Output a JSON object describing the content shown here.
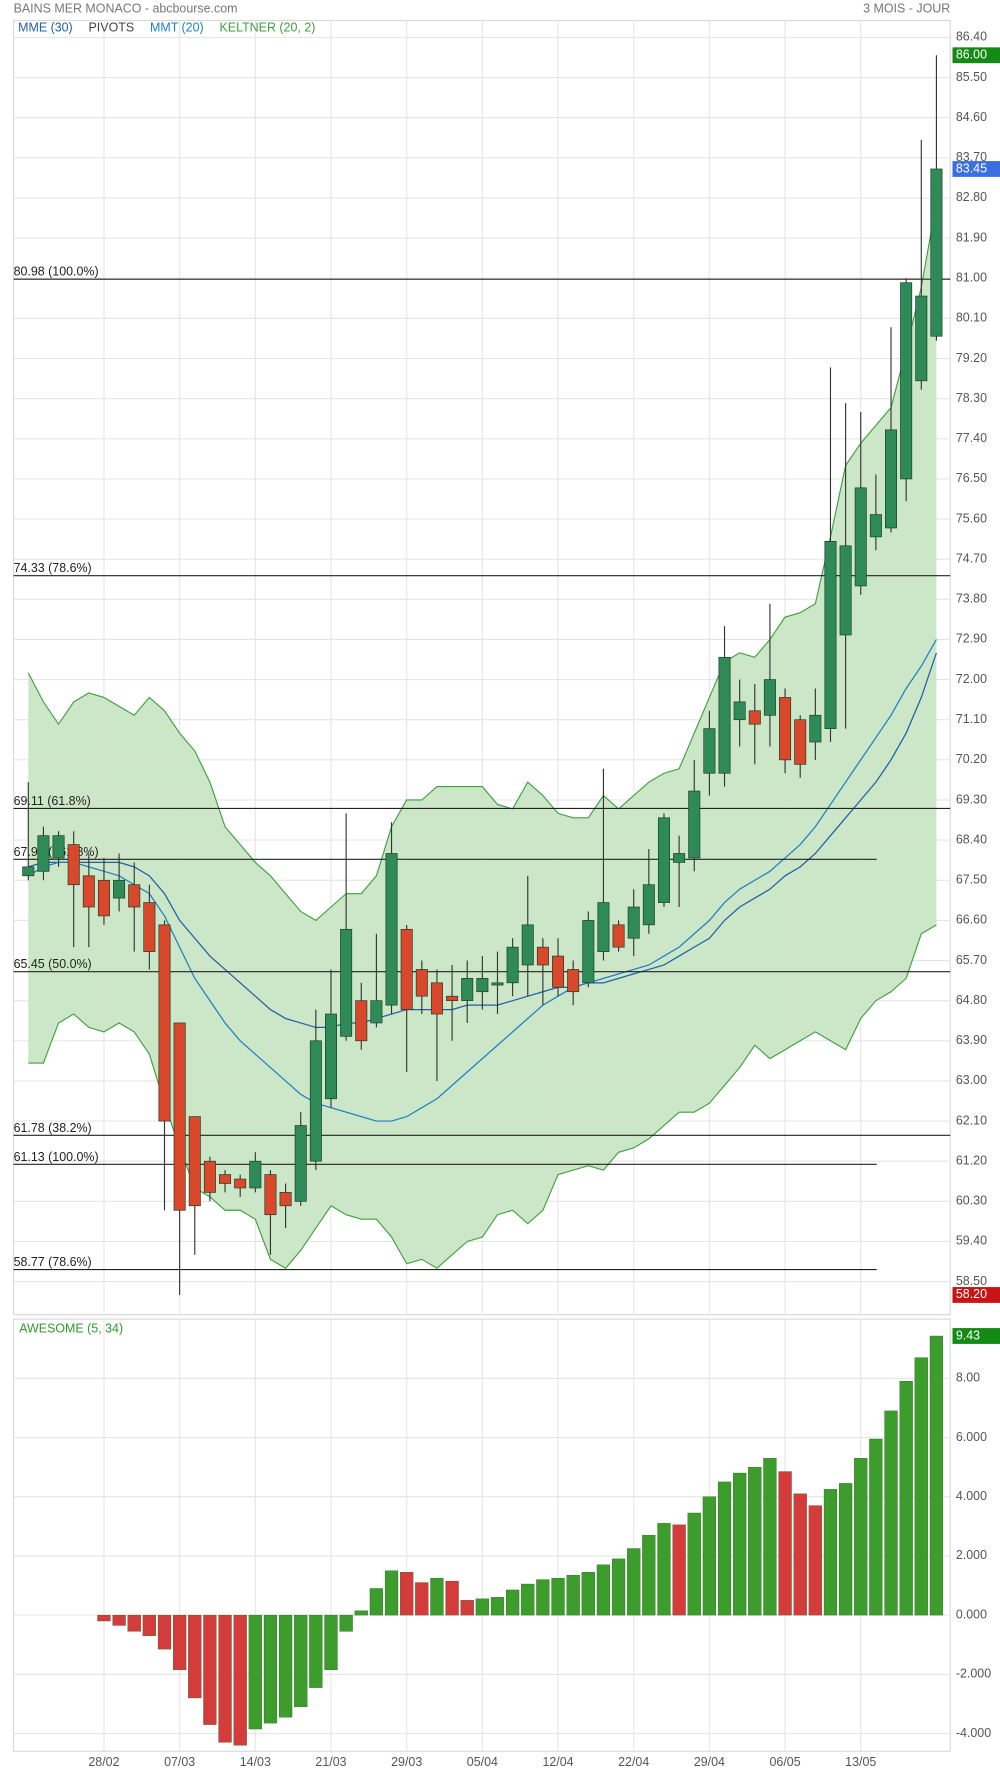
{
  "chart_data": [
    {
      "type": "candlestick",
      "title": "BAINS MER MONACO - abcbourse.com",
      "subtitle": "3 MOIS - JOUR",
      "categories": [
        null,
        null,
        null,
        null,
        null,
        "28/02",
        null,
        null,
        null,
        null,
        "07/03",
        null,
        null,
        null,
        null,
        "14/03",
        null,
        null,
        null,
        null,
        "21/03",
        null,
        null,
        null,
        null,
        "29/03",
        null,
        null,
        null,
        null,
        "05/04",
        null,
        null,
        null,
        null,
        "12/04",
        null,
        null,
        null,
        null,
        "22/04",
        null,
        null,
        null,
        null,
        "29/04",
        null,
        null,
        null,
        null,
        "06/05",
        null,
        null,
        null,
        null,
        "13/05",
        null,
        null,
        null,
        null,
        null
      ],
      "open": [
        67.6,
        67.7,
        68.0,
        68.3,
        67.6,
        67.5,
        67.1,
        67.4,
        67.0,
        66.5,
        64.3,
        62.2,
        61.2,
        60.9,
        60.8,
        60.6,
        60.9,
        60.5,
        60.3,
        61.2,
        62.6,
        64.0,
        64.8,
        64.3,
        64.7,
        66.4,
        65.5,
        65.2,
        64.9,
        64.8,
        65.0,
        65.15,
        65.2,
        65.6,
        66.0,
        65.8,
        65.5,
        65.2,
        65.9,
        66.5,
        66.2,
        66.5,
        67.0,
        67.9,
        68.0,
        69.9,
        69.9,
        71.1,
        71.3,
        71.2,
        71.6,
        71.1,
        70.6,
        70.9,
        73.0,
        74.1,
        75.2,
        75.4,
        76.5,
        78.7,
        79.7
      ],
      "high": [
        69.7,
        68.7,
        68.6,
        68.6,
        68.1,
        68.0,
        68.1,
        67.9,
        67.4,
        66.6,
        64.3,
        62.2,
        61.3,
        61.0,
        60.9,
        61.4,
        61.0,
        60.7,
        62.3,
        64.6,
        65.5,
        69.0,
        65.2,
        66.3,
        68.8,
        66.5,
        65.7,
        65.5,
        65.6,
        65.7,
        65.8,
        65.9,
        66.2,
        67.6,
        66.2,
        66.2,
        65.7,
        66.8,
        70.0,
        66.6,
        67.3,
        68.2,
        69.0,
        68.5,
        70.2,
        71.3,
        73.2,
        72.0,
        71.9,
        73.7,
        71.8,
        71.2,
        71.8,
        79.0,
        78.2,
        78.0,
        76.6,
        79.9,
        81.0,
        84.1,
        86.0
      ],
      "low": [
        67.5,
        67.5,
        67.8,
        66.0,
        66.0,
        66.5,
        66.8,
        65.9,
        65.5,
        60.1,
        58.2,
        59.1,
        60.3,
        60.5,
        60.4,
        60.5,
        59.1,
        59.7,
        60.2,
        61.0,
        62.4,
        63.9,
        63.7,
        64.2,
        64.5,
        63.2,
        64.5,
        63.0,
        63.9,
        64.3,
        64.6,
        64.5,
        64.9,
        64.9,
        64.7,
        64.9,
        64.7,
        65.1,
        65.7,
        65.9,
        65.8,
        66.3,
        66.9,
        66.9,
        67.7,
        69.4,
        69.6,
        70.5,
        70.1,
        70.5,
        69.9,
        69.8,
        70.2,
        70.6,
        70.9,
        73.9,
        74.9,
        75.3,
        76.0,
        78.5,
        79.6
      ],
      "close": [
        67.8,
        68.5,
        68.5,
        67.4,
        66.9,
        66.7,
        67.5,
        66.9,
        65.9,
        62.1,
        60.1,
        60.2,
        60.5,
        60.7,
        60.6,
        61.2,
        60.0,
        60.2,
        62.0,
        63.9,
        64.5,
        66.4,
        63.9,
        64.8,
        68.1,
        64.6,
        64.9,
        64.5,
        64.8,
        65.3,
        65.3,
        65.2,
        66.0,
        66.5,
        65.6,
        65.1,
        65.0,
        66.6,
        67.0,
        66.0,
        66.9,
        67.4,
        68.9,
        68.1,
        69.5,
        70.9,
        72.5,
        71.5,
        71.0,
        72.0,
        70.2,
        70.1,
        71.2,
        75.1,
        75.0,
        76.3,
        75.7,
        77.6,
        80.9,
        80.6,
        83.45
      ],
      "up_color": "#2e8b57",
      "down_color": "#d9482b",
      "series": [
        {
          "name": "MME (30)",
          "color": "#1f5fa8",
          "values": [
            67.8,
            67.9,
            67.9,
            67.9,
            67.9,
            67.9,
            67.9,
            67.8,
            67.6,
            67.2,
            66.6,
            66.2,
            65.8,
            65.5,
            65.2,
            64.9,
            64.6,
            64.4,
            64.3,
            64.2,
            64.2,
            64.3,
            64.3,
            64.4,
            64.5,
            64.6,
            64.6,
            64.6,
            64.6,
            64.7,
            64.7,
            64.7,
            64.8,
            64.9,
            65.0,
            65.1,
            65.1,
            65.2,
            65.2,
            65.3,
            65.4,
            65.5,
            65.6,
            65.8,
            66.0,
            66.2,
            66.6,
            66.9,
            67.1,
            67.3,
            67.6,
            67.8,
            68.1,
            68.5,
            68.9,
            69.3,
            69.7,
            70.2,
            70.8,
            71.6,
            72.6
          ]
        },
        {
          "name": "MMT (20)",
          "color": "#1e7fc8",
          "values": [
            67.6,
            67.8,
            67.9,
            67.9,
            67.8,
            67.7,
            67.6,
            67.4,
            67.2,
            66.7,
            66.0,
            65.3,
            64.8,
            64.3,
            63.9,
            63.6,
            63.3,
            63.0,
            62.7,
            62.5,
            62.4,
            62.3,
            62.2,
            62.1,
            62.1,
            62.2,
            62.4,
            62.6,
            62.9,
            63.2,
            63.5,
            63.8,
            64.1,
            64.4,
            64.7,
            64.9,
            65.1,
            65.2,
            65.3,
            65.4,
            65.5,
            65.6,
            65.8,
            66.0,
            66.3,
            66.6,
            67.0,
            67.3,
            67.5,
            67.7,
            68.0,
            68.3,
            68.7,
            69.2,
            69.7,
            70.2,
            70.7,
            71.2,
            71.8,
            72.3,
            72.9
          ]
        },
        {
          "name": "KELTNER (20, 2)",
          "color": "#3f9f3f",
          "fill": "#c9e6c4",
          "upper": [
            72.15,
            71.5,
            71.0,
            71.5,
            71.7,
            71.6,
            71.4,
            71.2,
            71.6,
            71.3,
            70.8,
            70.4,
            69.7,
            68.7,
            68.3,
            67.9,
            67.6,
            67.2,
            66.8,
            66.6,
            66.9,
            67.2,
            67.2,
            67.6,
            68.7,
            69.3,
            69.3,
            69.6,
            69.6,
            69.6,
            69.6,
            69.2,
            69.1,
            69.7,
            69.4,
            69.0,
            68.9,
            68.9,
            69.4,
            69.1,
            69.4,
            69.7,
            69.9,
            70.0,
            70.8,
            71.6,
            72.4,
            72.6,
            72.5,
            72.9,
            73.4,
            73.5,
            73.7,
            75.2,
            76.8,
            77.3,
            77.7,
            78.1,
            79.4,
            80.8,
            82.7
          ],
          "lower": [
            63.4,
            63.4,
            64.3,
            64.5,
            64.2,
            64.1,
            64.3,
            64.1,
            63.6,
            62.5,
            61.5,
            60.6,
            60.4,
            60.1,
            60.1,
            59.9,
            59.0,
            58.8,
            59.2,
            59.7,
            60.2,
            60.0,
            59.9,
            59.9,
            59.5,
            58.9,
            59.0,
            58.8,
            59.1,
            59.4,
            59.5,
            60.0,
            60.1,
            59.8,
            60.1,
            60.9,
            61.0,
            61.1,
            61.0,
            61.4,
            61.5,
            61.7,
            62.0,
            62.3,
            62.3,
            62.5,
            62.9,
            63.3,
            63.8,
            63.5,
            63.7,
            63.9,
            64.1,
            63.9,
            63.7,
            64.4,
            64.8,
            65.0,
            65.3,
            66.3,
            66.5
          ]
        }
      ],
      "pivots": {
        "name": "PIVOTS",
        "color": "#444444",
        "levels": [
          {
            "value": 80.98,
            "label": "80.98  (100.0%)",
            "extended": true
          },
          {
            "value": 74.33,
            "label": "74.33  (78.6%)",
            "extended": true
          },
          {
            "value": 69.11,
            "label": "69.11  (61.8%)",
            "extended": true
          },
          {
            "value": 67.97,
            "label": "67.97  (161.8%)",
            "extended": false
          },
          {
            "value": 65.45,
            "label": "65.45  (50.0%)",
            "extended": true
          },
          {
            "value": 61.78,
            "label": "61.78  (38.2%)",
            "extended": true
          },
          {
            "value": 61.13,
            "label": "61.13  (100.0%)",
            "extended": false
          },
          {
            "value": 58.77,
            "label": "58.77  (78.6%)",
            "extended": false
          }
        ]
      },
      "tags": [
        {
          "value": 86.0,
          "label": "86.00",
          "color": "#138a13"
        },
        {
          "value": 83.45,
          "label": "83.45",
          "color": "#3b6fe0"
        },
        {
          "value": 58.2,
          "label": "58.20",
          "color": "#c81414"
        }
      ],
      "ylim": [
        57.76,
        86.78
      ],
      "yticks": [
        {
          "value": 86.4,
          "label": "86.40"
        },
        {
          "value": 85.5,
          "label": "85.50"
        },
        {
          "value": 84.6,
          "label": "84.60"
        },
        {
          "value": 83.7,
          "label": "83.70"
        },
        {
          "value": 82.8,
          "label": "82.80"
        },
        {
          "value": 81.9,
          "label": "81.90"
        },
        {
          "value": 81,
          "label": "81.00"
        },
        {
          "value": 80.1,
          "label": "80.10"
        },
        {
          "value": 79.2,
          "label": "79.20"
        },
        {
          "value": 78.3,
          "label": "78.30"
        },
        {
          "value": 77.4,
          "label": "77.40"
        },
        {
          "value": 76.5,
          "label": "76.50"
        },
        {
          "value": 75.6,
          "label": "75.60"
        },
        {
          "value": 74.7,
          "label": "74.70"
        },
        {
          "value": 73.8,
          "label": "73.80"
        },
        {
          "value": 72.9,
          "label": "72.90"
        },
        {
          "value": 72,
          "label": "72.00"
        },
        {
          "value": 71.1,
          "label": "71.10"
        },
        {
          "value": 70.2,
          "label": "70.20"
        },
        {
          "value": 69.3,
          "label": "69.30"
        },
        {
          "value": 68.4,
          "label": "68.40"
        },
        {
          "value": 67.5,
          "label": "67.50"
        },
        {
          "value": 66.6,
          "label": "66.60"
        },
        {
          "value": 65.7,
          "label": "65.70"
        },
        {
          "value": 64.8,
          "label": "64.80"
        },
        {
          "value": 63.9,
          "label": "63.90"
        },
        {
          "value": 63,
          "label": "63.00"
        },
        {
          "value": 62.1,
          "label": "62.10"
        },
        {
          "value": 61.2,
          "label": "61.20"
        },
        {
          "value": 60.3,
          "label": "60.30"
        },
        {
          "value": 59.4,
          "label": "59.40"
        },
        {
          "value": 58.5,
          "label": "58.50"
        }
      ],
      "grid": true
    },
    {
      "type": "bar",
      "title": "AWESOME (5, 34)",
      "title_color": "#2f9a2f",
      "up_color": "#3c9c2c",
      "down_color": "#d43c3c",
      "tag_color": "#138a13",
      "values": [
        null,
        null,
        null,
        null,
        null,
        -0.2,
        -0.35,
        -0.55,
        -0.7,
        -1.15,
        -1.85,
        -2.8,
        -3.7,
        -4.3,
        -4.4,
        -3.85,
        -3.65,
        -3.45,
        -3.1,
        -2.45,
        -1.85,
        -0.55,
        0.15,
        0.9,
        1.5,
        1.45,
        1.1,
        1.25,
        1.15,
        0.5,
        0.55,
        0.6,
        0.85,
        1.05,
        1.2,
        1.25,
        1.35,
        1.45,
        1.7,
        1.9,
        2.25,
        2.7,
        3.1,
        3.05,
        3.45,
        4.0,
        4.5,
        4.8,
        5.0,
        5.3,
        4.85,
        4.1,
        3.7,
        4.25,
        4.45,
        5.3,
        5.95,
        6.9,
        7.9,
        8.7,
        9.43
      ],
      "ylim": [
        -4.6,
        10.0
      ],
      "yticks": [
        {
          "value": 8,
          "label": "8.00"
        },
        {
          "value": 6,
          "label": "6.000"
        },
        {
          "value": 4,
          "label": "4.000"
        },
        {
          "value": 2,
          "label": "2.000"
        },
        {
          "value": 0,
          "label": "0.000"
        },
        {
          "value": -2,
          "label": "-2.000"
        },
        {
          "value": -4,
          "label": "-4.000"
        }
      ],
      "grid": true
    }
  ]
}
